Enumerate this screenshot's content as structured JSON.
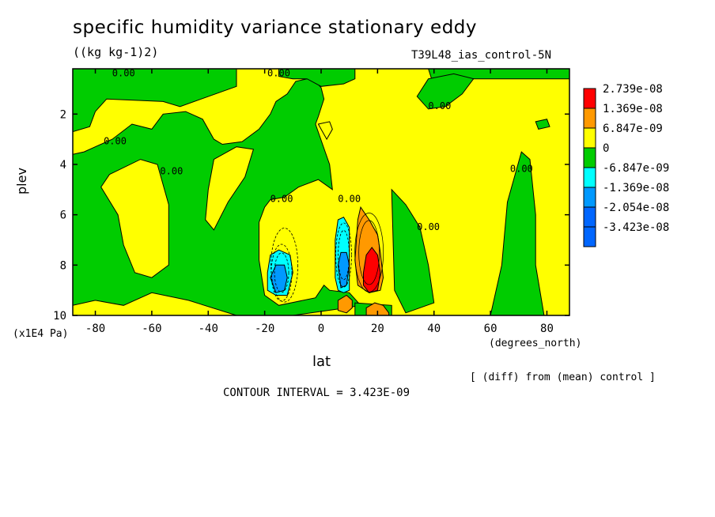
{
  "chart_data": {
    "type": "heatmap",
    "title": "specific humidity variance stationary eddy",
    "units": "((kg kg-1)2)",
    "dataset": "T39L48_ias_control-5N",
    "xlabel": "lat",
    "xunit": "(degrees_north)",
    "ylabel": "plev",
    "yunit": "(x1E4 Pa)",
    "xlim": [
      -88,
      88
    ],
    "ylim": [
      10,
      0.2
    ],
    "x_ticks": [
      {
        "value": -80,
        "label": "-80"
      },
      {
        "value": -60,
        "label": "-60"
      },
      {
        "value": -40,
        "label": "-40"
      },
      {
        "value": -20,
        "label": "-20"
      },
      {
        "value": 0,
        "label": "0"
      },
      {
        "value": 20,
        "label": "20"
      },
      {
        "value": 40,
        "label": "40"
      },
      {
        "value": 60,
        "label": "60"
      },
      {
        "value": 80,
        "label": "80"
      }
    ],
    "y_ticks": [
      {
        "value": 2,
        "label": "2"
      },
      {
        "value": 4,
        "label": "4"
      },
      {
        "value": 6,
        "label": "6"
      },
      {
        "value": 8,
        "label": "8"
      },
      {
        "value": 10,
        "label": "10"
      }
    ],
    "diff_note": "[ (diff) from (mean) control ]",
    "contour_interval": "CONTOUR INTERVAL = 3.423E-09",
    "contour_label": "0.00",
    "contour_label_positions": [
      {
        "lat": -70,
        "plev": 0.5
      },
      {
        "lat": -15,
        "plev": 0.5
      },
      {
        "lat": -73,
        "plev": 3.2
      },
      {
        "lat": -53,
        "plev": 4.4
      },
      {
        "lat": -14,
        "plev": 5.5
      },
      {
        "lat": 10,
        "plev": 5.5
      },
      {
        "lat": 38,
        "plev": 6.6
      },
      {
        "lat": 42,
        "plev": 1.8
      },
      {
        "lat": 71,
        "plev": 4.3
      }
    ],
    "legend": [
      {
        "label": "2.739e-08",
        "color": "#ff0000"
      },
      {
        "label": "1.369e-08",
        "color": "#ff9900"
      },
      {
        "label": "6.847e-09",
        "color": "#ffff00"
      },
      {
        "label": "0",
        "color": "#00cc00"
      },
      {
        "label": "-6.847e-09",
        "color": "#00ffff"
      },
      {
        "label": "-1.369e-08",
        "color": "#0099ff"
      },
      {
        "label": "-2.054e-08",
        "color": "#0066ff"
      },
      {
        "label": "-3.423e-08",
        "color": ""
      }
    ],
    "regions": [
      {
        "name": "green-sh-upper",
        "color": "#00cc00",
        "points": [
          [
            -88,
            0.2
          ],
          [
            -30,
            0.2
          ],
          [
            -30,
            0.9
          ],
          [
            -50,
            1.7
          ],
          [
            -56,
            1.5
          ],
          [
            -76,
            1.4
          ],
          [
            -80,
            1.9
          ],
          [
            -82,
            2.5
          ],
          [
            -88,
            2.7
          ]
        ]
      },
      {
        "name": "green-sh-column",
        "color": "#00cc00",
        "points": [
          [
            -88,
            3.6
          ],
          [
            -84,
            3.5
          ],
          [
            -80,
            3.3
          ],
          [
            -74,
            3.0
          ],
          [
            -67,
            2.4
          ],
          [
            -60,
            2.6
          ],
          [
            -56,
            2.0
          ],
          [
            -48,
            1.9
          ],
          [
            -42,
            2.2
          ],
          [
            -38,
            3.0
          ],
          [
            -35,
            3.2
          ],
          [
            -28,
            3.1
          ],
          [
            -22,
            2.6
          ],
          [
            -18,
            2.0
          ],
          [
            -16,
            1.5
          ],
          [
            -12,
            1.2
          ],
          [
            -9,
            0.7
          ],
          [
            -5,
            0.6
          ],
          [
            -2,
            0.7
          ],
          [
            0,
            0.95
          ],
          [
            1,
            1.4
          ],
          [
            -1,
            2.1
          ],
          [
            -2,
            2.4
          ],
          [
            3,
            4.0
          ],
          [
            4,
            5.0
          ],
          [
            -1,
            4.6
          ],
          [
            -8,
            4.9
          ],
          [
            -13,
            5.3
          ],
          [
            -18,
            5.4
          ],
          [
            -20,
            5.7
          ],
          [
            -22,
            6.3
          ],
          [
            -22,
            7.8
          ],
          [
            -20,
            9.2
          ],
          [
            -15,
            9.6
          ],
          [
            -2,
            9.3
          ],
          [
            1,
            8.8
          ],
          [
            3,
            9.0
          ],
          [
            10,
            9.1
          ],
          [
            14,
            9.6
          ],
          [
            9,
            9.7
          ],
          [
            -10,
            10
          ],
          [
            -30,
            10
          ],
          [
            -47,
            9.4
          ],
          [
            -60,
            9.1
          ],
          [
            -70,
            9.6
          ],
          [
            -80,
            9.4
          ],
          [
            -88,
            9.6
          ]
        ]
      },
      {
        "name": "yellow-hole-sh",
        "color": "#ffff00",
        "points": [
          [
            -75,
            4.4
          ],
          [
            -64,
            3.8
          ],
          [
            -58,
            4.0
          ],
          [
            -54,
            5.6
          ],
          [
            -54,
            8.0
          ],
          [
            -60,
            8.5
          ],
          [
            -66,
            8.3
          ],
          [
            -70,
            7.2
          ],
          [
            -72,
            6.0
          ],
          [
            -78,
            4.9
          ]
        ]
      },
      {
        "name": "yellow-hole-mid",
        "color": "#ffff00",
        "points": [
          [
            -38,
            3.8
          ],
          [
            -30,
            3.3
          ],
          [
            -24,
            3.4
          ],
          [
            -27,
            4.5
          ],
          [
            -33,
            5.5
          ],
          [
            -38,
            6.6
          ],
          [
            -41,
            6.2
          ],
          [
            -40,
            5.0
          ]
        ]
      },
      {
        "name": "yellow-hole-eq",
        "color": "#ffff00",
        "points": [
          [
            -1,
            2.4
          ],
          [
            3,
            2.3
          ],
          [
            4,
            2.6
          ],
          [
            2,
            3.0
          ]
        ]
      },
      {
        "name": "green-eq-top",
        "color": "#00cc00",
        "points": [
          [
            -15,
            0.2
          ],
          [
            12,
            0.2
          ],
          [
            12,
            0.6
          ],
          [
            8,
            0.8
          ],
          [
            0,
            0.9
          ],
          [
            -5,
            0.6
          ],
          [
            -10,
            0.6
          ],
          [
            -15,
            0.5
          ]
        ]
      },
      {
        "name": "green-nh-top",
        "color": "#00cc00",
        "points": [
          [
            38,
            0.2
          ],
          [
            88,
            0.2
          ],
          [
            88,
            0.6
          ],
          [
            50,
            0.6
          ],
          [
            40,
            0.9
          ]
        ]
      },
      {
        "name": "green-nh-upper",
        "color": "#00cc00",
        "points": [
          [
            38,
            0.6
          ],
          [
            47,
            0.4
          ],
          [
            54,
            0.6
          ],
          [
            50,
            1.2
          ],
          [
            44,
            1.7
          ],
          [
            38,
            1.8
          ],
          [
            34,
            1.3
          ]
        ]
      },
      {
        "name": "green-nh-spot",
        "color": "#00cc00",
        "points": [
          [
            76,
            2.3
          ],
          [
            80,
            2.2
          ],
          [
            81,
            2.5
          ],
          [
            77,
            2.6
          ]
        ]
      },
      {
        "name": "green-nh-column",
        "color": "#00cc00",
        "points": [
          [
            25,
            5.0
          ],
          [
            30,
            5.6
          ],
          [
            35,
            6.5
          ],
          [
            38,
            8.0
          ],
          [
            40,
            9.5
          ],
          [
            30,
            9.9
          ],
          [
            26,
            9.0
          ]
        ]
      },
      {
        "name": "green-nh-polar",
        "color": "#00cc00",
        "points": [
          [
            71,
            3.5
          ],
          [
            74,
            3.8
          ],
          [
            76,
            6.0
          ],
          [
            76,
            8.0
          ],
          [
            79,
            10
          ],
          [
            60,
            10
          ],
          [
            64,
            8.0
          ],
          [
            66,
            5.5
          ]
        ]
      },
      {
        "name": "green-eq-low",
        "color": "#00cc00",
        "points": [
          [
            12,
            9.5
          ],
          [
            25,
            9.6
          ],
          [
            25,
            10
          ],
          [
            12,
            10
          ]
        ]
      },
      {
        "name": "orange-lobe",
        "color": "#ff9900",
        "points": [
          [
            12,
            7.8
          ],
          [
            13,
            6.2
          ],
          [
            14,
            5.7
          ],
          [
            17,
            6.2
          ],
          [
            20,
            6.8
          ],
          [
            21,
            7.5
          ],
          [
            22,
            8.5
          ],
          [
            21,
            9.0
          ],
          [
            17,
            9.1
          ],
          [
            13,
            8.8
          ]
        ]
      },
      {
        "name": "red-core",
        "color": "#ff0000",
        "points": [
          [
            15,
            8.3
          ],
          [
            16,
            7.6
          ],
          [
            18,
            7.3
          ],
          [
            20,
            7.6
          ],
          [
            21,
            8.3
          ],
          [
            20,
            9.0
          ],
          [
            17,
            9.1
          ],
          [
            15,
            8.8
          ]
        ]
      },
      {
        "name": "orange-low",
        "color": "#ff9900",
        "points": [
          [
            6,
            9.4
          ],
          [
            9,
            9.2
          ],
          [
            11,
            9.4
          ],
          [
            11,
            9.7
          ],
          [
            9,
            9.9
          ],
          [
            6,
            9.8
          ]
        ]
      },
      {
        "name": "orange-bottom",
        "color": "#ff9900",
        "points": [
          [
            16,
            9.7
          ],
          [
            19,
            9.5
          ],
          [
            22,
            9.6
          ],
          [
            24,
            9.9
          ],
          [
            24,
            10
          ],
          [
            16,
            10
          ]
        ]
      },
      {
        "name": "cyan-sh",
        "color": "#00ffff",
        "points": [
          [
            -19,
            8.3
          ],
          [
            -18,
            7.6
          ],
          [
            -15,
            7.4
          ],
          [
            -11,
            7.6
          ],
          [
            -10,
            8.3
          ],
          [
            -12,
            9.2
          ],
          [
            -16,
            9.2
          ],
          [
            -19,
            9.0
          ]
        ]
      },
      {
        "name": "blue-sh",
        "color": "#0099ff",
        "points": [
          [
            -18,
            8.5
          ],
          [
            -16,
            8.0
          ],
          [
            -13,
            8.0
          ],
          [
            -12,
            8.5
          ],
          [
            -13,
            9.0
          ],
          [
            -16,
            9.1
          ]
        ]
      },
      {
        "name": "cyan-eq",
        "color": "#00ffff",
        "points": [
          [
            5,
            7.0
          ],
          [
            6,
            6.2
          ],
          [
            8,
            6.1
          ],
          [
            10,
            6.5
          ],
          [
            10,
            8.0
          ],
          [
            10,
            9.0
          ],
          [
            8,
            9.1
          ],
          [
            6,
            9.0
          ],
          [
            5,
            8.5
          ]
        ]
      },
      {
        "name": "blue-eq",
        "color": "#0099ff",
        "points": [
          [
            6,
            8.0
          ],
          [
            7,
            7.5
          ],
          [
            9,
            7.5
          ],
          [
            10,
            8.0
          ],
          [
            9,
            8.8
          ],
          [
            7,
            8.9
          ]
        ]
      }
    ]
  }
}
